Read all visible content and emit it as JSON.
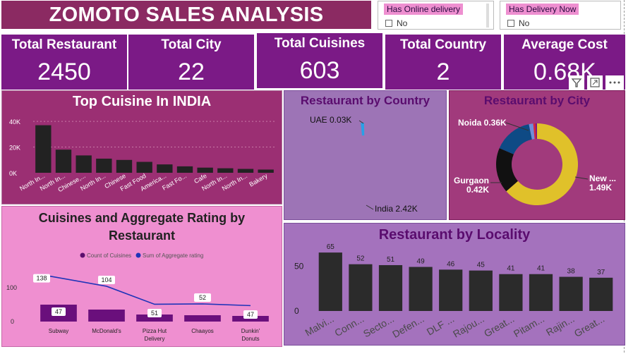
{
  "header": {
    "title": "ZOMOTO SALES ANALYSIS"
  },
  "slicers": [
    {
      "title": "Has Online delivery",
      "option": "No"
    },
    {
      "title": "Has Delivery Now",
      "option": "No"
    }
  ],
  "kpis": [
    {
      "label": "Total Restaurant",
      "value": "2450"
    },
    {
      "label": "Total City",
      "value": "22"
    },
    {
      "label": "Total Cuisines",
      "value": "603"
    },
    {
      "label": "Total Country",
      "value": "2"
    },
    {
      "label": "Average Cost",
      "value": "0.68K"
    }
  ],
  "chart_data": [
    {
      "type": "bar",
      "title": "Top Cuisine In INDIA",
      "categories": [
        "North In...",
        "North In...",
        "Chinese,...",
        "North In...",
        "Chinese",
        "Fast Food",
        "America...",
        "Fast Fo...",
        "Cafe",
        "North In...",
        "North In...",
        "Bakery"
      ],
      "values": [
        37000,
        18000,
        13500,
        11000,
        10000,
        8500,
        6500,
        5000,
        4000,
        3500,
        3000,
        2500
      ],
      "y_ticks": [
        "0K",
        "20K",
        "40K"
      ],
      "ylim": [
        0,
        45000
      ]
    },
    {
      "type": "pie",
      "title": "Restaurant by Country",
      "slices": [
        {
          "label": "UAE 0.03K",
          "value": 30,
          "color": "#2aa0e6"
        },
        {
          "label": "India 2.42K",
          "value": 2420,
          "color": "#0e4a85"
        }
      ]
    },
    {
      "type": "pie",
      "title": "Restaurant by City",
      "slices": [
        {
          "label": "New ...\n1.49K",
          "value": 1490,
          "color": "#e0c12a"
        },
        {
          "label": "Gurgaon\n0.42K",
          "value": 420,
          "color": "#111111"
        },
        {
          "label": "Noida 0.36K",
          "value": 360,
          "color": "#0e4a85"
        },
        {
          "label": "",
          "value": 40,
          "color": "#6f8ed8"
        },
        {
          "label": "",
          "value": 20,
          "color": "#d7263d"
        },
        {
          "label": "",
          "value": 15,
          "color": "#7b1a86"
        }
      ]
    },
    {
      "type": "bar+line",
      "title": "Cuisines and Aggregate Rating by Restaurant",
      "legend": [
        "Count of Cuisines",
        "Sum of Aggregate rating"
      ],
      "categories": [
        "Subway",
        "McDonald's",
        "Pizza Hut Delivery",
        "Chaayos",
        "Dunkin' Donuts"
      ],
      "bar_values": [
        47,
        34,
        51,
        52,
        47
      ],
      "bar_labels": [
        "47",
        "",
        "51",
        "",
        "47"
      ],
      "line_values": [
        138,
        104,
        51,
        52,
        47
      ],
      "line_labels": [
        "138",
        "104",
        "",
        "52",
        ""
      ],
      "y_ticks": [
        "0",
        "100"
      ],
      "ylim": [
        0,
        160
      ]
    },
    {
      "type": "bar",
      "title": "Restaurant by Locality",
      "categories": [
        "Malvi...",
        "Conn...",
        "Secto...",
        "Defen...",
        "DLF ...",
        "Rajou...",
        "Great...",
        "Pitam...",
        "Rajin...",
        "Great..."
      ],
      "values": [
        65,
        52,
        51,
        49,
        46,
        45,
        41,
        41,
        38,
        37
      ],
      "y_ticks": [
        "0",
        "50"
      ],
      "ylim": [
        0,
        80
      ]
    }
  ]
}
